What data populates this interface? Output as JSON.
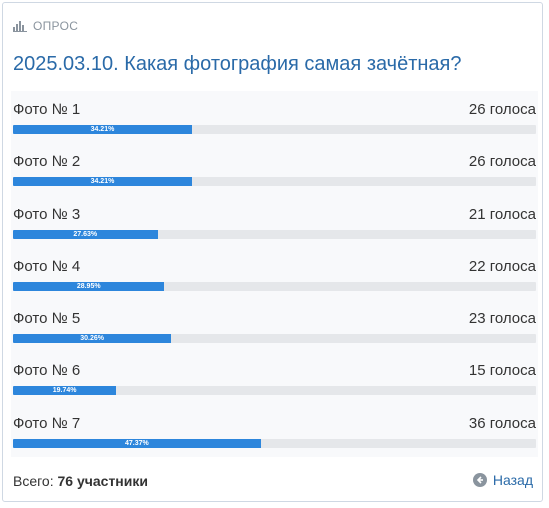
{
  "header": {
    "label": "ОПРОС",
    "icon": "bar-chart-icon"
  },
  "title": "2025.03.10. Какая фотография самая зачётная?",
  "options": [
    {
      "name": "Фото № 1",
      "votes": "26 голоса",
      "percent_label": "34.21%",
      "percent": 34.21
    },
    {
      "name": "Фото № 2",
      "votes": "26 голоса",
      "percent_label": "34.21%",
      "percent": 34.21
    },
    {
      "name": "Фото № 3",
      "votes": "21 голоса",
      "percent_label": "27.63%",
      "percent": 27.63
    },
    {
      "name": "Фото № 4",
      "votes": "22 голоса",
      "percent_label": "28.95%",
      "percent": 28.95
    },
    {
      "name": "Фото № 5",
      "votes": "23 голоса",
      "percent_label": "30.26%",
      "percent": 30.26
    },
    {
      "name": "Фото № 6",
      "votes": "15 голоса",
      "percent_label": "19.74%",
      "percent": 19.74
    },
    {
      "name": "Фото № 7",
      "votes": "36 голоса",
      "percent_label": "47.37%",
      "percent": 47.37
    }
  ],
  "footer": {
    "total_label": "Всего:",
    "total_value": "76 участники",
    "back_label": "Назад",
    "back_icon": "arrow-left-circle-icon"
  },
  "colors": {
    "accent": "#2a6aa8",
    "bar": "#2d86dc",
    "track": "#e5e7ea"
  }
}
